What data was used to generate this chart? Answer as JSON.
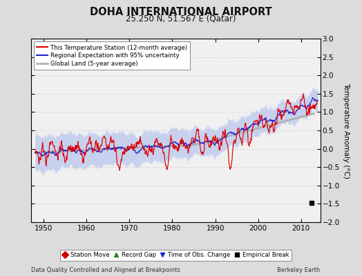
{
  "title": "DOHA INTERNATIONAL AIRPORT",
  "subtitle": "25.250 N, 51.567 E (Qatar)",
  "xlabel_bottom": "Data Quality Controlled and Aligned at Breakpoints",
  "xlabel_right": "Berkeley Earth",
  "ylabel": "Temperature Anomaly (°C)",
  "xlim": [
    1947,
    2014.5
  ],
  "ylim": [
    -2.0,
    3.0
  ],
  "yticks": [
    -2,
    -1.5,
    -1,
    -0.5,
    0,
    0.5,
    1,
    1.5,
    2,
    2.5,
    3
  ],
  "xticks": [
    1950,
    1960,
    1970,
    1980,
    1990,
    2000,
    2010
  ],
  "bg_color": "#dcdcdc",
  "plot_bg_color": "#f0f0f0",
  "red_line_color": "#dd0000",
  "blue_line_color": "#2222cc",
  "gray_line_color": "#b0b0b0",
  "uncertainty_color": "#c0ccee",
  "legend_labels": [
    "This Temperature Station (12-month average)",
    "Regional Expectation with 95% uncertainty",
    "Global Land (5-year average)"
  ],
  "marker_labels": [
    "Station Move",
    "Record Gap",
    "Time of Obs. Change",
    "Empirical Break"
  ],
  "empirical_break_x": 2012.5,
  "empirical_break_y": -1.48
}
